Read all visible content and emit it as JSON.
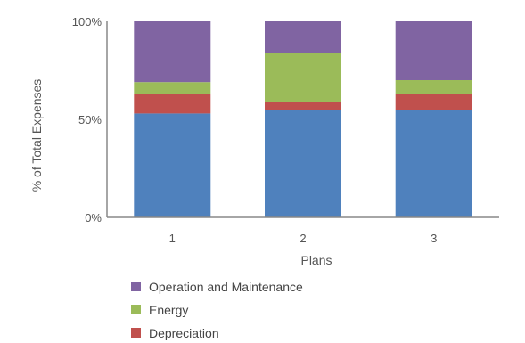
{
  "chart_data": {
    "type": "bar",
    "stacked": true,
    "percent": true,
    "title": "",
    "xlabel": "Plans",
    "ylabel": "% of Total Expenses",
    "ylim": [
      0,
      100
    ],
    "yticks": [
      "0%",
      "50%",
      "100%"
    ],
    "categories": [
      "1",
      "2",
      "3"
    ],
    "series": [
      {
        "name": "",
        "color": "#4f81bd",
        "values": [
          53,
          55,
          55
        ]
      },
      {
        "name": "Depreciation",
        "color": "#c0504d",
        "values": [
          10,
          4,
          8
        ]
      },
      {
        "name": "Energy",
        "color": "#9bbb59",
        "values": [
          6,
          25,
          7
        ]
      },
      {
        "name": "Operation and Maintenance",
        "color": "#8064a2",
        "values": [
          31,
          16,
          30
        ]
      }
    ],
    "legend_order": [
      3,
      2,
      1
    ],
    "legend_position": "bottom-left",
    "grid": false
  }
}
